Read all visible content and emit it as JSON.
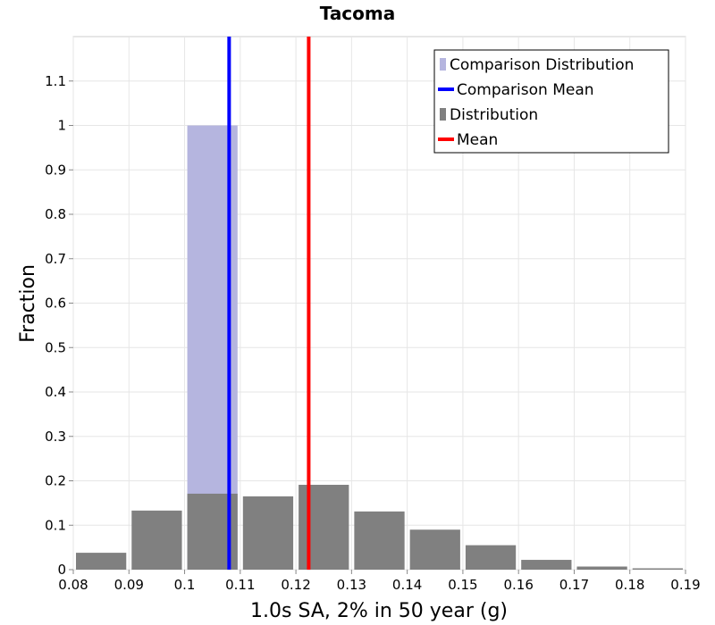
{
  "chart_data": {
    "type": "bar",
    "title": "Tacoma",
    "xlabel": "1.0s SA, 2% in 50 year (g)",
    "ylabel": "Fraction",
    "xlim": [
      0.08,
      0.19
    ],
    "ylim": [
      0,
      1.2
    ],
    "x_ticks": [
      0.08,
      0.09,
      0.1,
      0.11,
      0.12,
      0.13,
      0.14,
      0.15,
      0.16,
      0.17,
      0.18,
      0.19
    ],
    "x_tick_labels": [
      "0.08",
      "0.09",
      "0.1",
      "0.11",
      "0.12",
      "0.13",
      "0.14",
      "0.15",
      "0.16",
      "0.17",
      "0.18",
      "0.19"
    ],
    "y_ticks": [
      0,
      0.1,
      0.2,
      0.3,
      0.4,
      0.5,
      0.6,
      0.7,
      0.8,
      0.9,
      1,
      1.1
    ],
    "y_tick_labels": [
      "0",
      "0.1",
      "0.2",
      "0.3",
      "0.4",
      "0.5",
      "0.6",
      "0.7",
      "0.8",
      "0.9",
      "1",
      "1.1"
    ],
    "grid": true,
    "legend_position": "top-right",
    "legend": [
      {
        "label": "Comparison Distribution",
        "color": "#b5b5df",
        "kind": "bar"
      },
      {
        "label": "Comparison Mean",
        "color": "#0000ff",
        "kind": "line"
      },
      {
        "label": "Distribution",
        "color": "#808080",
        "kind": "bar"
      },
      {
        "label": "Mean",
        "color": "#ff0000",
        "kind": "line"
      }
    ],
    "comparison_distribution": {
      "name": "Comparison Distribution",
      "color": "#b5b5df",
      "bins": [
        {
          "start": 0.1,
          "end": 0.11,
          "value": 1.0
        }
      ]
    },
    "distribution": {
      "name": "Distribution",
      "color": "#808080",
      "bin_width": 0.01,
      "bin_starts": [
        0.08,
        0.09,
        0.1,
        0.11,
        0.12,
        0.13,
        0.14,
        0.15,
        0.16,
        0.17,
        0.18
      ],
      "values": [
        0.038,
        0.133,
        0.171,
        0.165,
        0.191,
        0.131,
        0.09,
        0.055,
        0.022,
        0.007,
        0.003
      ]
    },
    "comparison_mean": {
      "name": "Comparison Mean",
      "value": 0.108,
      "color": "#0000ff"
    },
    "mean": {
      "name": "Mean",
      "value": 0.1223,
      "color": "#ff0000"
    }
  }
}
